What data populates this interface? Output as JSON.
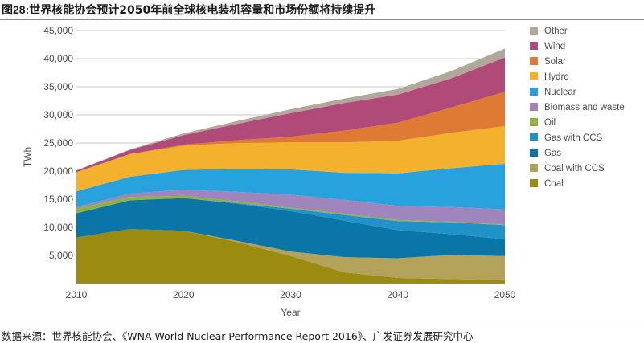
{
  "figure": {
    "label": "图28:",
    "title": "世界核能协会预计2050年前全球核电装机容量和市场份额将持续提升"
  },
  "source": "数据来源：世界核能协会、《WNA World Nuclear Performance Report 2016》、广发证券发展研究中心",
  "chart_data": {
    "type": "area",
    "stacked": true,
    "xlabel": "Year",
    "ylabel": "TWh",
    "xlim": [
      2010,
      2050
    ],
    "ylim": [
      0,
      45000
    ],
    "x_ticks": [
      2010,
      2020,
      2030,
      2040,
      2050
    ],
    "y_ticks": [
      "5,000",
      "10,000",
      "15,000",
      "20,000",
      "25,000",
      "30,000",
      "35,000",
      "40,000",
      "45,000"
    ],
    "y_tick_values": [
      5000,
      10000,
      15000,
      20000,
      25000,
      30000,
      35000,
      40000,
      45000
    ],
    "grid": "horizontal",
    "legend_position": "right",
    "x": [
      2010,
      2015,
      2020,
      2025,
      2030,
      2035,
      2040,
      2045,
      2050
    ],
    "series": [
      {
        "name": "Coal",
        "color": "#9b8b11",
        "values": [
          8200,
          9700,
          9400,
          7400,
          4900,
          2000,
          1000,
          800,
          600
        ]
      },
      {
        "name": "Coal with CCS",
        "color": "#b2a25a",
        "values": [
          0,
          0,
          0,
          200,
          800,
          2700,
          3500,
          4300,
          4300
        ]
      },
      {
        "name": "Gas",
        "color": "#0a76a8",
        "values": [
          4300,
          5100,
          5800,
          6600,
          7200,
          6500,
          5000,
          3700,
          3000
        ]
      },
      {
        "name": "Gas with CCS",
        "color": "#1f93c8",
        "values": [
          0,
          0,
          0,
          100,
          400,
          1000,
          1600,
          2100,
          2500
        ]
      },
      {
        "name": "Oil",
        "color": "#8db33f",
        "values": [
          800,
          600,
          400,
          300,
          200,
          200,
          200,
          100,
          100
        ]
      },
      {
        "name": "Biomass and waste",
        "color": "#9e86bd",
        "values": [
          300,
          600,
          1100,
          1700,
          2300,
          2500,
          2500,
          2600,
          2700
        ]
      },
      {
        "name": "Nuclear",
        "color": "#27a2dd",
        "values": [
          2800,
          3000,
          3500,
          4100,
          4500,
          4800,
          5800,
          6900,
          8100
        ]
      },
      {
        "name": "Hydro",
        "color": "#f3b12e",
        "values": [
          3400,
          4000,
          4300,
          4600,
          4800,
          5400,
          5800,
          6300,
          6700
        ]
      },
      {
        "name": "Solar",
        "color": "#de7a33",
        "values": [
          0,
          50,
          200,
          500,
          1000,
          2100,
          3200,
          4500,
          6100
        ]
      },
      {
        "name": "Wind",
        "color": "#b04a79",
        "values": [
          300,
          700,
          1700,
          2900,
          4200,
          4900,
          5000,
          5200,
          6100
        ]
      },
      {
        "name": "Other",
        "color": "#b1a79b",
        "values": [
          0,
          100,
          300,
          500,
          700,
          800,
          1000,
          1300,
          1600
        ]
      }
    ],
    "legend_order": [
      "Other",
      "Wind",
      "Solar",
      "Hydro",
      "Nuclear",
      "Biomass and waste",
      "Oil",
      "Gas with CCS",
      "Gas",
      "Coal with CCS",
      "Coal"
    ]
  }
}
